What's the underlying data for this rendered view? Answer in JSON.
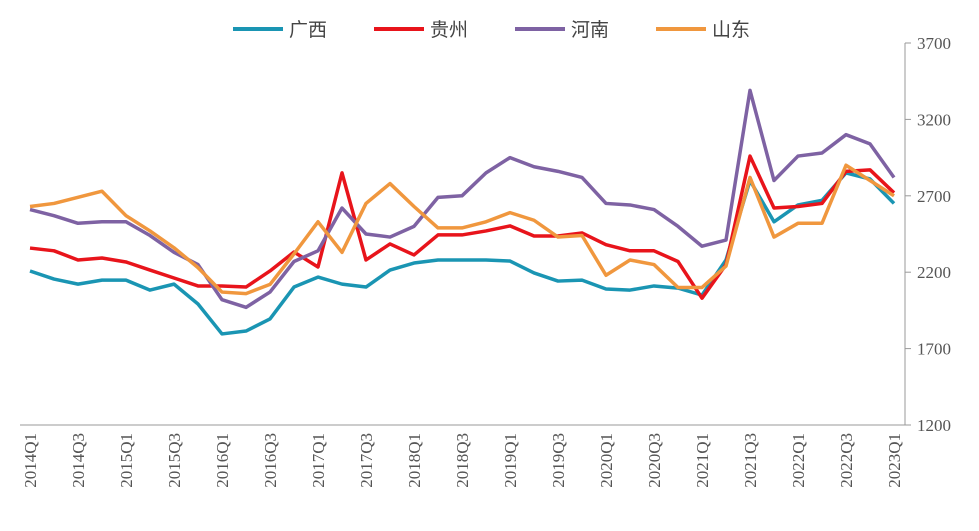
{
  "chart_data": {
    "type": "line",
    "categories": [
      "2014Q1",
      null,
      "2014Q3",
      null,
      "2015Q1",
      null,
      "2015Q3",
      null,
      "2016Q1",
      null,
      "2016Q3",
      null,
      "2017Q1",
      null,
      "2017Q3",
      null,
      "2018Q1",
      null,
      "2018Q3",
      null,
      "2019Q1",
      null,
      "2019Q3",
      null,
      "2020Q1",
      null,
      "2020Q3",
      null,
      "2021Q1",
      null,
      "2021Q3",
      null,
      "2022Q1",
      null,
      "2022Q3",
      null,
      "2023Q1"
    ],
    "series": [
      {
        "name": "广西",
        "color": "#1a95b3",
        "values": [
          2208,
          2155,
          2122,
          2148,
          2148,
          2083,
          2122,
          1992,
          1796,
          1815,
          1894,
          2103,
          2168,
          2122,
          2103,
          2214,
          2260,
          2280,
          2280,
          2280,
          2273,
          2195,
          2142,
          2148,
          2090,
          2083,
          2110,
          2096,
          2050,
          2280,
          2800,
          2530,
          2640,
          2670,
          2850,
          2810,
          2650
        ]
      },
      {
        "name": "贵州",
        "color": "#e8141b",
        "values": [
          2358,
          2340,
          2280,
          2293,
          2267,
          2214,
          2162,
          2110,
          2110,
          2103,
          2208,
          2332,
          2234,
          2850,
          2280,
          2385,
          2313,
          2444,
          2444,
          2470,
          2503,
          2437,
          2437,
          2457,
          2380,
          2340,
          2340,
          2270,
          2030,
          2250,
          2960,
          2620,
          2630,
          2650,
          2860,
          2870,
          2720
        ]
      },
      {
        "name": "河南",
        "color": "#7e62a3",
        "values": [
          2610,
          2570,
          2520,
          2530,
          2530,
          2440,
          2330,
          2250,
          2020,
          1970,
          2070,
          2270,
          2340,
          2620,
          2450,
          2430,
          2500,
          2690,
          2700,
          2850,
          2950,
          2890,
          2860,
          2820,
          2650,
          2640,
          2610,
          2500,
          2370,
          2410,
          3390,
          2800,
          2960,
          2980,
          3100,
          3040,
          2820
        ]
      },
      {
        "name": "山东",
        "color": "#f0973e",
        "values": [
          2630,
          2650,
          2690,
          2730,
          2570,
          2470,
          2360,
          2230,
          2070,
          2060,
          2120,
          2320,
          2530,
          2330,
          2650,
          2780,
          2630,
          2490,
          2490,
          2530,
          2590,
          2540,
          2430,
          2440,
          2180,
          2280,
          2250,
          2100,
          2100,
          2240,
          2820,
          2430,
          2520,
          2520,
          2900,
          2800,
          2700
        ]
      }
    ],
    "ylim": [
      1200,
      3700
    ],
    "yticks": [
      1200,
      1700,
      2200,
      2700,
      3200,
      3700
    ],
    "y_axis_side": "right",
    "legend": "top"
  }
}
